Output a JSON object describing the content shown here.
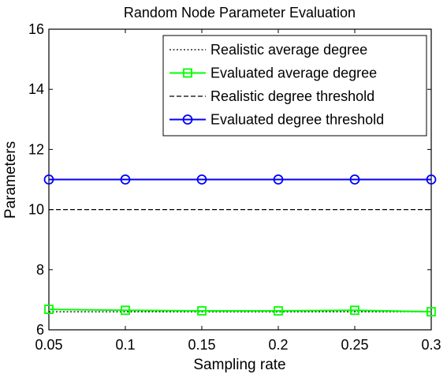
{
  "chart_data": {
    "type": "line",
    "title": "Random Node Parameter Evaluation",
    "xlabel": "Sampling rate",
    "ylabel": "Parameters",
    "x": [
      0.05,
      0.1,
      0.15,
      0.2,
      0.25,
      0.3
    ],
    "xlim": [
      0.05,
      0.3
    ],
    "ylim": [
      6,
      16
    ],
    "xticks": [
      "0.05",
      "0.1",
      "0.15",
      "0.2",
      "0.25",
      "0.3"
    ],
    "yticks": [
      "6",
      "8",
      "10",
      "12",
      "14",
      "16"
    ],
    "grid": false,
    "legend_position": "top-right",
    "series": [
      {
        "name": "Realistic average degree",
        "values": [
          6.6,
          6.6,
          6.6,
          6.6,
          6.6,
          6.6
        ],
        "color": "#000000",
        "line_style": "dotted",
        "marker": "none"
      },
      {
        "name": "Evaluated average degree",
        "values": [
          6.68,
          6.65,
          6.63,
          6.63,
          6.65,
          6.6
        ],
        "color": "#00ff00",
        "line_style": "solid",
        "marker": "square"
      },
      {
        "name": "Realistic degree threshold",
        "values": [
          10,
          10,
          10,
          10,
          10,
          10
        ],
        "color": "#000000",
        "line_style": "dashed",
        "marker": "none"
      },
      {
        "name": "Evaluated degree threshold",
        "values": [
          11,
          11,
          11,
          11,
          11,
          11
        ],
        "color": "#0000ff",
        "line_style": "solid",
        "marker": "circle"
      }
    ]
  }
}
